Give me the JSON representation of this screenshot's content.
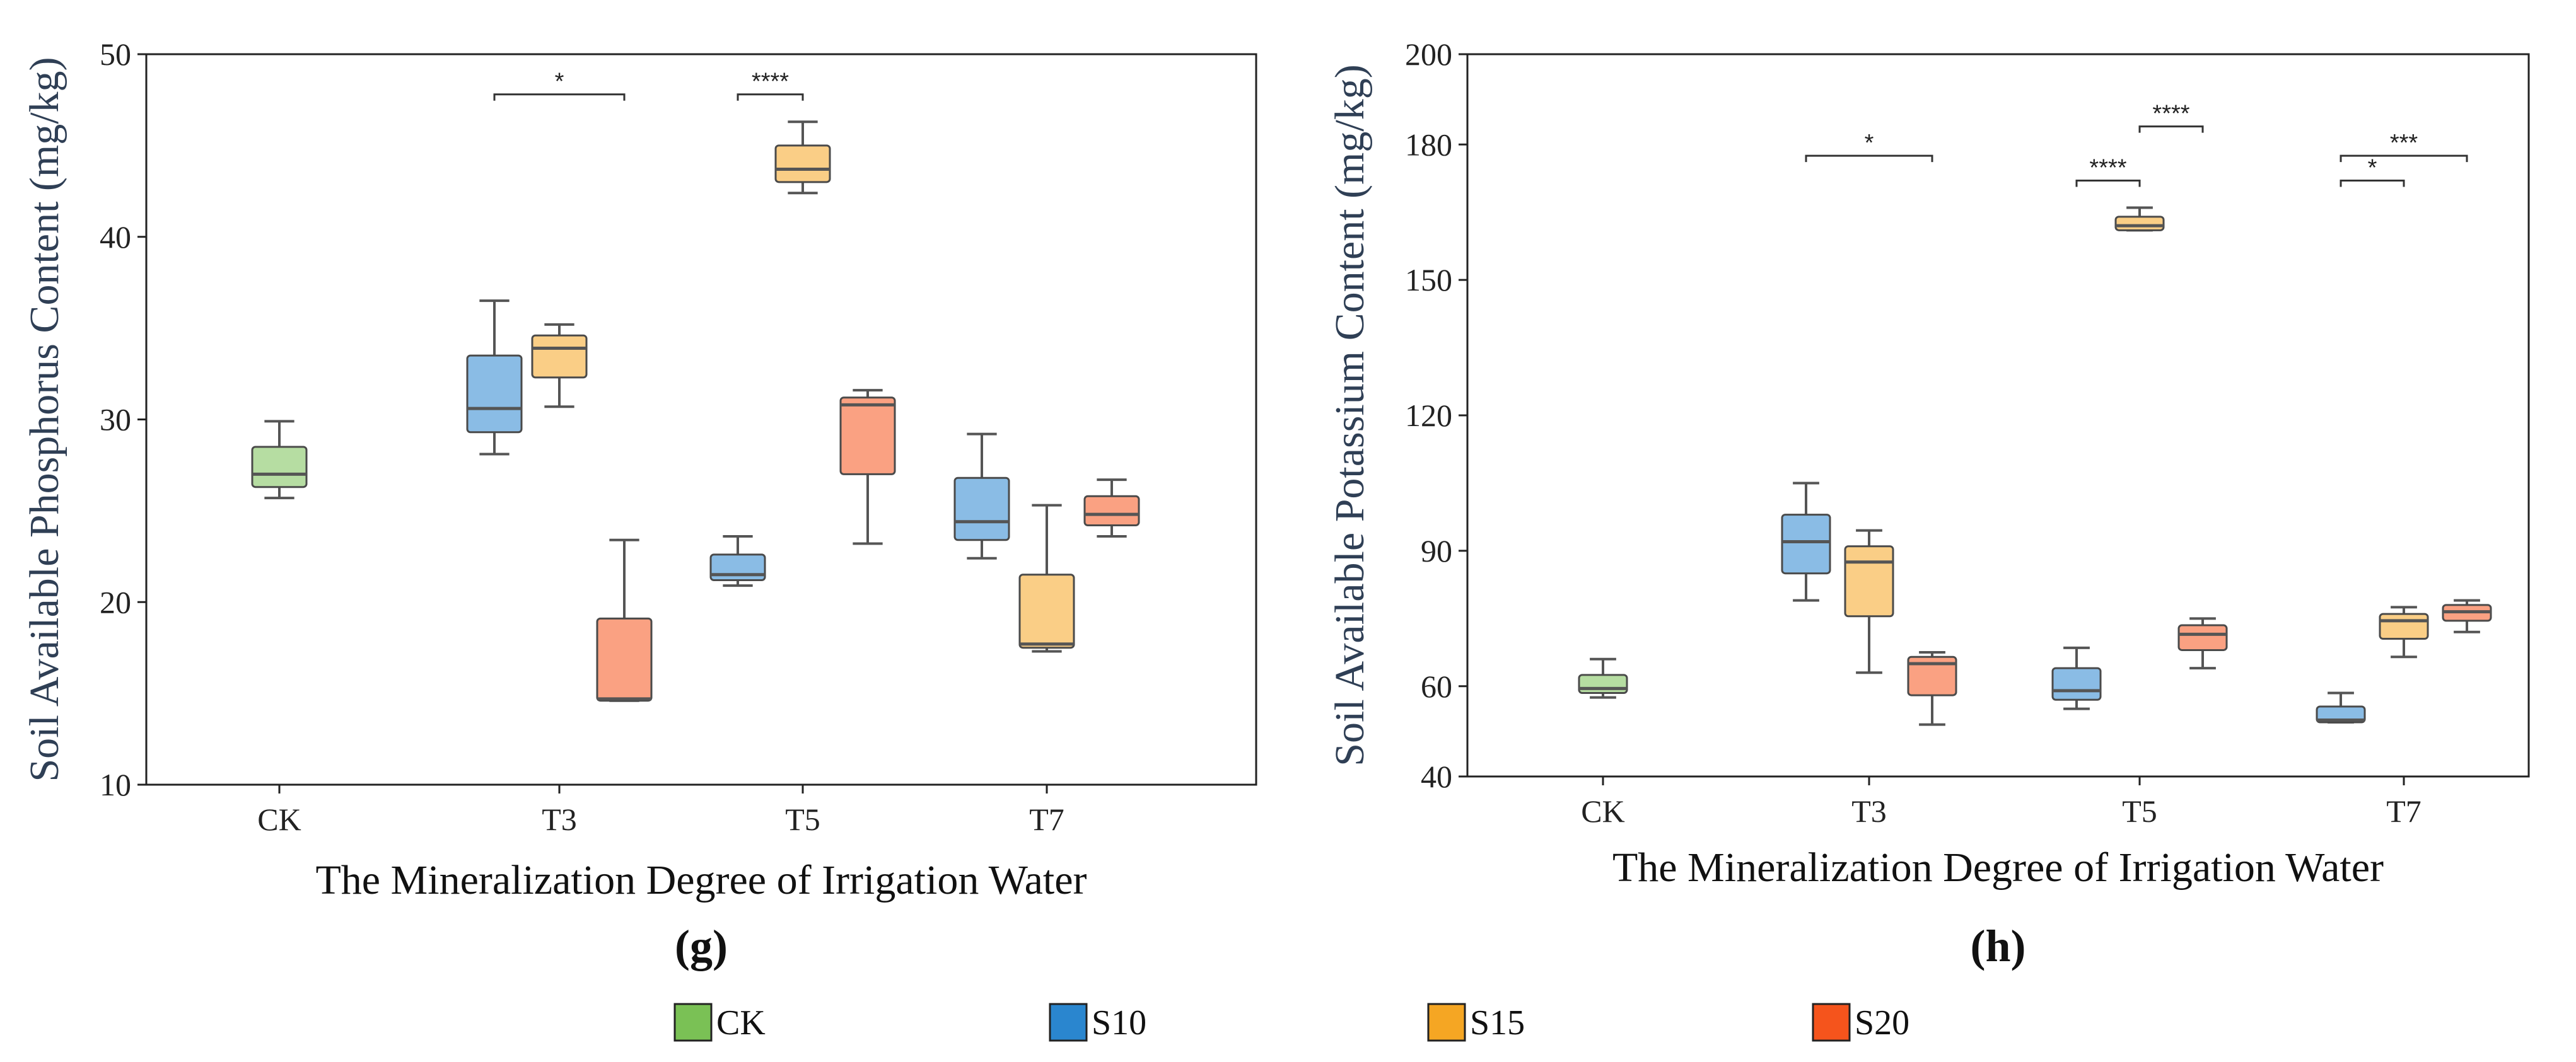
{
  "colors": {
    "CK": "#7ac155",
    "S10": "#2a86cf",
    "S15": "#f5a623",
    "S20": "#f5541c",
    "median": "#555555",
    "whisker": "#555555",
    "frame": "#222222"
  },
  "legend": {
    "items": [
      {
        "label": "CK",
        "color": "#7ac155"
      },
      {
        "label": "S10",
        "color": "#2a86cf"
      },
      {
        "label": "S15",
        "color": "#f5a623"
      },
      {
        "label": "S20",
        "color": "#f5541c"
      }
    ]
  },
  "chart_data": [
    {
      "type": "box",
      "panel_label": "(g)",
      "title": "",
      "xlabel": "The Mineralization Degree of Irrigation Water",
      "ylabel": "Soil Available Phosphorus Content (mg/kg)",
      "ylim": [
        10,
        50
      ],
      "yticks": [
        10,
        20,
        30,
        40,
        50
      ],
      "categories": [
        "CK",
        "T3",
        "T5",
        "T7"
      ],
      "boxes": [
        {
          "category": "CK",
          "group": "CK",
          "min": 25.7,
          "q1": 26.3,
          "median": 27.0,
          "q3": 28.5,
          "max": 29.9
        },
        {
          "category": "T3",
          "group": "S10",
          "min": 28.1,
          "q1": 29.3,
          "median": 30.6,
          "q3": 33.5,
          "max": 36.5
        },
        {
          "category": "T3",
          "group": "S15",
          "min": 30.7,
          "q1": 32.3,
          "median": 33.9,
          "q3": 34.6,
          "max": 35.2
        },
        {
          "category": "T3",
          "group": "S20",
          "min": 14.6,
          "q1": 14.6,
          "median": 14.7,
          "q3": 19.1,
          "max": 23.4
        },
        {
          "category": "T5",
          "group": "S10",
          "min": 20.9,
          "q1": 21.2,
          "median": 21.5,
          "q3": 22.6,
          "max": 23.6
        },
        {
          "category": "T5",
          "group": "S15",
          "min": 42.4,
          "q1": 43.0,
          "median": 43.7,
          "q3": 45.0,
          "max": 46.3
        },
        {
          "category": "T5",
          "group": "S20",
          "min": 23.2,
          "q1": 27.0,
          "median": 30.8,
          "q3": 31.2,
          "max": 31.6
        },
        {
          "category": "T7",
          "group": "S10",
          "min": 22.4,
          "q1": 23.4,
          "median": 24.4,
          "q3": 26.8,
          "max": 29.2
        },
        {
          "category": "T7",
          "group": "S15",
          "min": 17.3,
          "q1": 17.5,
          "median": 17.7,
          "q3": 21.5,
          "max": 25.3
        },
        {
          "category": "T7",
          "group": "S20",
          "min": 23.6,
          "q1": 24.2,
          "median": 24.8,
          "q3": 25.8,
          "max": 26.7
        }
      ],
      "significance": [
        {
          "category": "T3",
          "from": "S10",
          "to": "S20",
          "y": 47.8,
          "label": "*"
        },
        {
          "category": "T5",
          "from": "S10",
          "to": "S15",
          "y": 47.8,
          "label": "****"
        }
      ]
    },
    {
      "type": "box",
      "panel_label": "(h)",
      "title": "",
      "xlabel": "The Mineralization Degree of Irrigation Water",
      "ylabel": "Soil Available Potassium Content (mg/kg)",
      "ylim": [
        40,
        200
      ],
      "yticks": [
        40,
        60,
        90,
        120,
        150,
        180,
        200
      ],
      "categories": [
        "CK",
        "T3",
        "T5",
        "T7"
      ],
      "boxes": [
        {
          "category": "CK",
          "group": "CK",
          "min": 57.5,
          "q1": 58.5,
          "median": 59.5,
          "q3": 62.5,
          "max": 66.0
        },
        {
          "category": "T3",
          "group": "S10",
          "min": 79.0,
          "q1": 85.0,
          "median": 92.0,
          "q3": 98.0,
          "max": 105.0
        },
        {
          "category": "T3",
          "group": "S15",
          "min": 63.0,
          "q1": 75.5,
          "median": 87.5,
          "q3": 91.0,
          "max": 94.5
        },
        {
          "category": "T3",
          "group": "S20",
          "min": 51.5,
          "q1": 58.0,
          "median": 65.0,
          "q3": 66.5,
          "max": 67.5
        },
        {
          "category": "T5",
          "group": "S10",
          "min": 55.0,
          "q1": 57.0,
          "median": 59.0,
          "q3": 64.0,
          "max": 68.5
        },
        {
          "category": "T5",
          "group": "S15",
          "min": 161.0,
          "q1": 161.0,
          "median": 162.0,
          "q3": 164.0,
          "max": 166.0
        },
        {
          "category": "T5",
          "group": "S20",
          "min": 64.0,
          "q1": 68.0,
          "median": 71.5,
          "q3": 73.5,
          "max": 75.0
        },
        {
          "category": "T7",
          "group": "S10",
          "min": 52.0,
          "q1": 52.0,
          "median": 52.5,
          "q3": 55.5,
          "max": 58.5
        },
        {
          "category": "T7",
          "group": "S15",
          "min": 66.5,
          "q1": 70.5,
          "median": 74.5,
          "q3": 76.0,
          "max": 77.5
        },
        {
          "category": "T7",
          "group": "S20",
          "min": 72.0,
          "q1": 74.5,
          "median": 76.5,
          "q3": 78.0,
          "max": 79.0
        }
      ],
      "significance": [
        {
          "category": "T3",
          "from": "S10",
          "to": "S20",
          "y": 177.5,
          "label": "*"
        },
        {
          "category": "T5",
          "from": "S10",
          "to": "S15",
          "y": 172.0,
          "label": "****"
        },
        {
          "category": "T5",
          "from": "S15",
          "to": "S20",
          "y": 184.0,
          "label": "****"
        },
        {
          "category": "T7",
          "from": "S10",
          "to": "S15",
          "y": 172.0,
          "label": "*"
        },
        {
          "category": "T7",
          "from": "S10",
          "to": "S20",
          "y": 177.5,
          "label": "***"
        }
      ]
    }
  ]
}
